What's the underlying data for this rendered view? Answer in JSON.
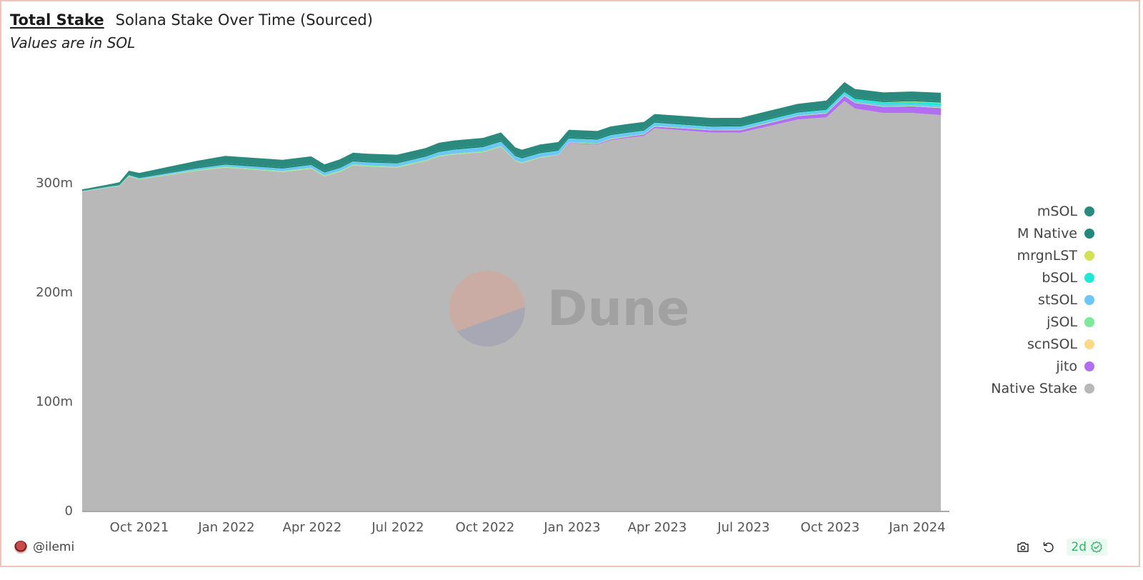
{
  "header": {
    "title_link": "Total Stake",
    "title": "Solana Stake Over Time (Sourced)",
    "subtitle": "Values are in SOL"
  },
  "watermark": {
    "text": "Dune"
  },
  "footer": {
    "author": "@ilemi",
    "freshness": "2d",
    "icons": [
      "camera-icon",
      "refresh-icon",
      "check-badge-icon"
    ]
  },
  "legend": [
    {
      "label": "mSOL",
      "color": "#2a8a7e"
    },
    {
      "label": "M Native",
      "color": "#23887a"
    },
    {
      "label": "mrgnLST",
      "color": "#d4e157"
    },
    {
      "label": "bSOL",
      "color": "#1de9d6"
    },
    {
      "label": "stSOL",
      "color": "#6ec6f5"
    },
    {
      "label": "jSOL",
      "color": "#7ee89a"
    },
    {
      "label": "scnSOL",
      "color": "#fcd98a"
    },
    {
      "label": "jito",
      "color": "#b16ef0"
    },
    {
      "label": "Native Stake",
      "color": "#b8b8b8"
    }
  ],
  "chart_data": {
    "type": "area",
    "stacked": true,
    "title": "Total Stake — Solana Stake Over Time (Sourced)",
    "subtitle": "Values are in SOL",
    "xlabel": "",
    "ylabel": "",
    "ylim": [
      0,
      390000000
    ],
    "yticks": [
      {
        "value": 0,
        "label": "0"
      },
      {
        "value": 100000000,
        "label": "100m"
      },
      {
        "value": 200000000,
        "label": "200m"
      },
      {
        "value": 300000000,
        "label": "300m"
      }
    ],
    "xticks": [
      "Oct 2021",
      "Jan 2022",
      "Apr 2022",
      "Jul 2022",
      "Oct 2022",
      "Jan 2023",
      "Apr 2023",
      "Jul 2023",
      "Oct 2023",
      "Jan 2024"
    ],
    "grid": false,
    "legend_position": "right",
    "x": [
      "2021-08",
      "2021-09-01",
      "2021-09-10",
      "2021-09-20",
      "2021-10-01",
      "2021-11-01",
      "2021-12-01",
      "2022-01-01",
      "2022-02-01",
      "2022-03-01",
      "2022-04-01",
      "2022-04-15",
      "2022-05-01",
      "2022-05-15",
      "2022-06-01",
      "2022-07-01",
      "2022-08-01",
      "2022-08-15",
      "2022-09-01",
      "2022-10-01",
      "2022-10-20",
      "2022-11-05",
      "2022-11-12",
      "2022-12-01",
      "2022-12-20",
      "2023-01-01",
      "2023-02-01",
      "2023-02-15",
      "2023-03-01",
      "2023-03-20",
      "2023-04-01",
      "2023-05-01",
      "2023-06-01",
      "2023-07-01",
      "2023-08-01",
      "2023-09-01",
      "2023-10-01",
      "2023-10-20",
      "2023-11-01",
      "2023-12-01",
      "2024-01-01",
      "2024-02-01"
    ],
    "series": [
      {
        "name": "Native Stake",
        "values": [
          292,
          296,
          297,
          306,
          303,
          307,
          311,
          314,
          312,
          310,
          313,
          306,
          310,
          316,
          315,
          314,
          320,
          324,
          326,
          328,
          333,
          320,
          318,
          323,
          325,
          336,
          335,
          339,
          341,
          343,
          350,
          348,
          346,
          346,
          352,
          358,
          360,
          375,
          368,
          364,
          364,
          362
        ]
      },
      {
        "name": "jito",
        "values": [
          0,
          0,
          0,
          0,
          0,
          0,
          0,
          0,
          0,
          0,
          0,
          0,
          0,
          0,
          0,
          0,
          0,
          0,
          0,
          0,
          0,
          0,
          0,
          0,
          0.3,
          0.5,
          0.6,
          0.8,
          1,
          1.2,
          1.5,
          1.8,
          2,
          2.2,
          2.6,
          3,
          3.4,
          4.5,
          5,
          5.5,
          6,
          6.5
        ]
      },
      {
        "name": "scnSOL",
        "values": [
          0.1,
          0.1,
          0.1,
          0.1,
          0.1,
          0.2,
          0.2,
          0.2,
          0.2,
          0.2,
          0.2,
          0.2,
          0.2,
          0.2,
          0.2,
          0.2,
          0.2,
          0.2,
          0.2,
          0.2,
          0.2,
          0.2,
          0.2,
          0.2,
          0.2,
          0.2,
          0.2,
          0.2,
          0.2,
          0.2,
          0.2,
          0.2,
          0.2,
          0.2,
          0.2,
          0.2,
          0.2,
          0.2,
          0.2,
          0.2,
          0.2,
          0.2
        ]
      },
      {
        "name": "jSOL",
        "values": [
          0.2,
          0.3,
          0.3,
          0.4,
          0.5,
          0.6,
          0.7,
          0.8,
          0.8,
          0.8,
          0.8,
          0.8,
          0.8,
          0.8,
          0.8,
          0.8,
          0.8,
          0.8,
          0.7,
          0.7,
          0.7,
          0.6,
          0.6,
          0.5,
          0.5,
          0.5,
          0.5,
          0.5,
          0.5,
          0.5,
          0.5,
          0.5,
          0.5,
          0.5,
          0.5,
          0.5,
          0.5,
          0.5,
          0.5,
          0.5,
          0.5,
          0.5
        ]
      },
      {
        "name": "stSOL",
        "values": [
          0.2,
          0.3,
          0.4,
          0.6,
          0.8,
          1,
          1.3,
          1.6,
          1.8,
          2,
          2.2,
          2.3,
          2.4,
          2.5,
          2.5,
          2.6,
          2.8,
          3,
          3.2,
          3.5,
          3.6,
          3.4,
          3.3,
          3.2,
          3.1,
          3,
          2.9,
          2.8,
          2.7,
          2.6,
          2.5,
          2.4,
          2.3,
          2.2,
          2.1,
          2,
          1.9,
          1.8,
          1.7,
          1.6,
          1.5,
          1.5
        ]
      },
      {
        "name": "bSOL",
        "values": [
          0,
          0,
          0,
          0,
          0,
          0,
          0,
          0.1,
          0.1,
          0.1,
          0.1,
          0.1,
          0.1,
          0.1,
          0.1,
          0.1,
          0.1,
          0.2,
          0.2,
          0.2,
          0.2,
          0.2,
          0.2,
          0.2,
          0.2,
          0.3,
          0.3,
          0.3,
          0.3,
          0.3,
          0.3,
          0.3,
          0.4,
          0.4,
          0.5,
          0.6,
          0.8,
          1.2,
          1.5,
          1.8,
          2,
          2.2
        ]
      },
      {
        "name": "mrgnLST",
        "values": [
          0,
          0,
          0,
          0,
          0,
          0,
          0,
          0,
          0,
          0,
          0,
          0,
          0,
          0,
          0,
          0,
          0,
          0,
          0,
          0,
          0,
          0,
          0,
          0,
          0,
          0,
          0,
          0,
          0,
          0,
          0,
          0,
          0,
          0,
          0,
          0,
          0,
          0,
          0,
          0.2,
          0.4,
          0.5
        ]
      },
      {
        "name": "M Native",
        "values": [
          0.5,
          0.7,
          0.8,
          1,
          1.2,
          1.3,
          1.4,
          1.5,
          1.5,
          1.5,
          1.5,
          1.5,
          1.5,
          1.5,
          1.5,
          1.5,
          1.5,
          1.5,
          1.5,
          1.5,
          1.5,
          1.5,
          1.5,
          1.5,
          1.5,
          1.5,
          1.5,
          1.5,
          1.5,
          1.5,
          1.5,
          1.5,
          1.5,
          1.5,
          1.5,
          1.5,
          1.5,
          1.5,
          1.5,
          1.5,
          1.5,
          1.5
        ]
      },
      {
        "name": "mSOL",
        "values": [
          1,
          1.5,
          2,
          3,
          3.5,
          4.5,
          5.5,
          6.5,
          6.5,
          6.5,
          6.5,
          6,
          6.5,
          6.5,
          6.5,
          6.5,
          6.5,
          7,
          7,
          7,
          7,
          6.5,
          6.5,
          6.5,
          6.5,
          6.5,
          6.5,
          6.5,
          6.5,
          6.5,
          6.5,
          6.5,
          6.5,
          6.5,
          6.5,
          6.5,
          7,
          7.5,
          7.5,
          7.5,
          7.5,
          7.5
        ]
      }
    ],
    "units": "millions of SOL (series values)"
  }
}
